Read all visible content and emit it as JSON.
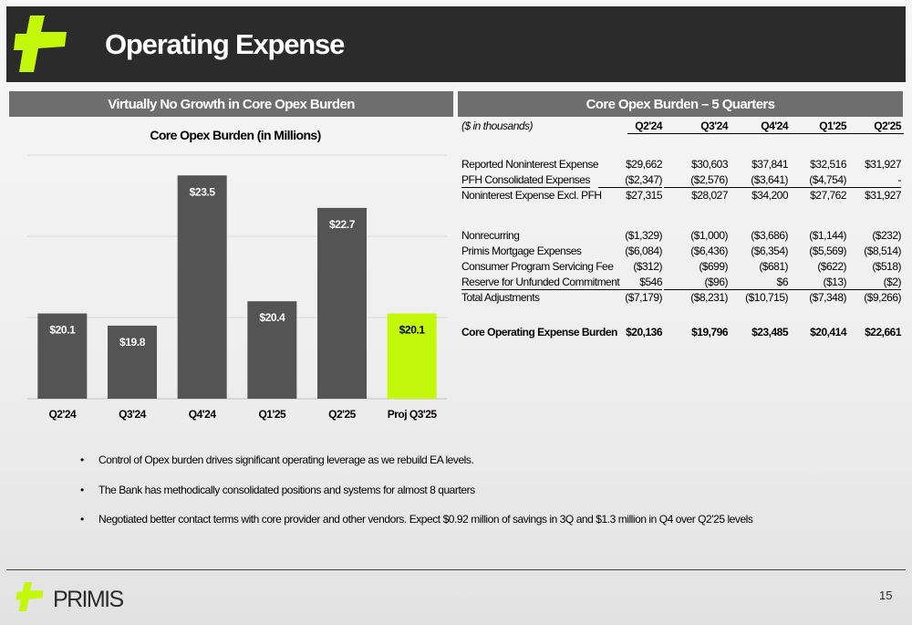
{
  "header": {
    "title": "Operating Expense"
  },
  "panels": {
    "left_title": "Virtually No Growth in Core Opex Burden",
    "right_title": "Core Opex Burden – 5 Quarters"
  },
  "colors": {
    "bar": "#545454",
    "highlight": "#c3f80b",
    "header_bg": "#2b2b2b",
    "panel_bg": "#6e6e6e",
    "logo": "#c3f80b"
  },
  "chart_data": {
    "type": "bar",
    "title": "Core Opex Burden (in Millions)",
    "categories": [
      "Q2'24",
      "Q3'24",
      "Q4'24",
      "Q1'25",
      "Q2'25",
      "Proj Q3'25"
    ],
    "values": [
      20.1,
      19.8,
      23.5,
      20.4,
      22.7,
      20.1
    ],
    "data_labels": [
      "$20.1",
      "$19.8",
      "$23.5",
      "$20.4",
      "$22.7",
      "$20.1"
    ],
    "highlight_index": 5,
    "ylim": [
      18,
      24
    ],
    "grid": true
  },
  "table": {
    "unit_label": "($ in thousands)",
    "columns": [
      "Q2'24",
      "Q3'24",
      "Q4'24",
      "Q1'25",
      "Q2'25"
    ],
    "group1": [
      {
        "label": "Reported Noninterest Expense",
        "values": [
          "$29,662",
          "$30,603",
          "$37,841",
          "$32,516",
          "$31,927"
        ]
      },
      {
        "label": "PFH Consolidated Expenses",
        "values": [
          "($2,347)",
          "($2,576)",
          "($3,641)",
          "($4,754)",
          "-"
        ]
      },
      {
        "label": "Noninterest Expense Excl. PFH",
        "values": [
          "$27,315",
          "$28,027",
          "$34,200",
          "$27,762",
          "$31,927"
        ]
      }
    ],
    "group2": [
      {
        "label": "Nonrecurring",
        "values": [
          "($1,329)",
          "($1,000)",
          "($3,686)",
          "($1,144)",
          "($232)"
        ]
      },
      {
        "label": "Primis Mortgage Expenses",
        "values": [
          "($6,084)",
          "($6,436)",
          "($6,354)",
          "($5,569)",
          "($8,514)"
        ]
      },
      {
        "label": "Consumer Program Servicing Fee",
        "values": [
          "($312)",
          "($699)",
          "($681)",
          "($622)",
          "($518)"
        ]
      },
      {
        "label": "Reserve for Unfunded Commitment",
        "values": [
          "$546",
          "($96)",
          "$6",
          "($13)",
          "($2)"
        ]
      },
      {
        "label": "Total Adjustments",
        "values": [
          "($7,179)",
          "($8,231)",
          "($10,715)",
          "($7,348)",
          "($9,266)"
        ]
      }
    ],
    "total": {
      "label": "Core Operating Expense Burden",
      "values": [
        "$20,136",
        "$19,796",
        "$23,485",
        "$20,414",
        "$22,661"
      ]
    }
  },
  "bullets": [
    "Control of Opex burden drives significant operating leverage as we rebuild EA levels.",
    "The Bank has methodically consolidated positions and systems for almost 8 quarters",
    "Negotiated better contact terms with core provider and other vendors.  Expect $0.92 million of savings in 3Q and $1.3 million in Q4 over Q2'25 levels"
  ],
  "footer": {
    "company": "PRIMIS",
    "page_number": "15"
  }
}
